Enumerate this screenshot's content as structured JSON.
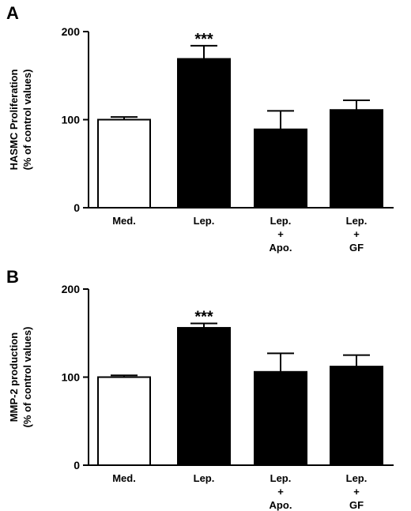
{
  "chart_data": [
    {
      "panel": "A",
      "type": "bar",
      "ylabel": [
        "HASMC Proliferation",
        "(% of control values)"
      ],
      "ylim": [
        0,
        200
      ],
      "yticks": [
        "0",
        "100",
        "200"
      ],
      "categories": [
        [
          "Med."
        ],
        [
          "Lep."
        ],
        [
          "Lep.",
          "+",
          "Apo."
        ],
        [
          "Lep.",
          "+",
          "GF"
        ]
      ],
      "values": [
        100,
        169,
        89,
        111
      ],
      "errors": [
        3,
        15,
        21,
        11
      ],
      "fills": [
        "#ffffff",
        "#000000",
        "#000000",
        "#000000"
      ],
      "annotations": [
        "",
        "***",
        "",
        ""
      ]
    },
    {
      "panel": "B",
      "type": "bar",
      "ylabel": [
        "MMP-2 production",
        "(% of control values)"
      ],
      "ylim": [
        0,
        200
      ],
      "yticks": [
        "0",
        "100",
        "200"
      ],
      "categories": [
        [
          "Med."
        ],
        [
          "Lep."
        ],
        [
          "Lep.",
          "+",
          "Apo."
        ],
        [
          "Lep.",
          "+",
          "GF"
        ]
      ],
      "values": [
        100,
        156,
        106,
        112
      ],
      "errors": [
        2,
        5,
        21,
        13
      ],
      "fills": [
        "#ffffff",
        "#000000",
        "#000000",
        "#000000"
      ],
      "annotations": [
        "",
        "***",
        "",
        ""
      ]
    }
  ]
}
